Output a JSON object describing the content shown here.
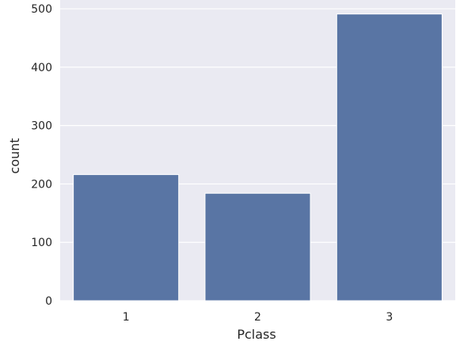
{
  "chart_data": {
    "type": "bar",
    "xlabel": "Pclass",
    "ylabel": "count",
    "categories": [
      "1",
      "2",
      "3"
    ],
    "values": [
      216,
      184,
      491
    ],
    "ylim": [
      0,
      515
    ],
    "yticks": [
      "0",
      "100",
      "200",
      "300",
      "400",
      "500"
    ],
    "grid": true,
    "colors": {
      "bar": "#5975a4",
      "plot_background": "#eaeaf2",
      "grid": "#ffffff",
      "text": "#262626"
    }
  }
}
